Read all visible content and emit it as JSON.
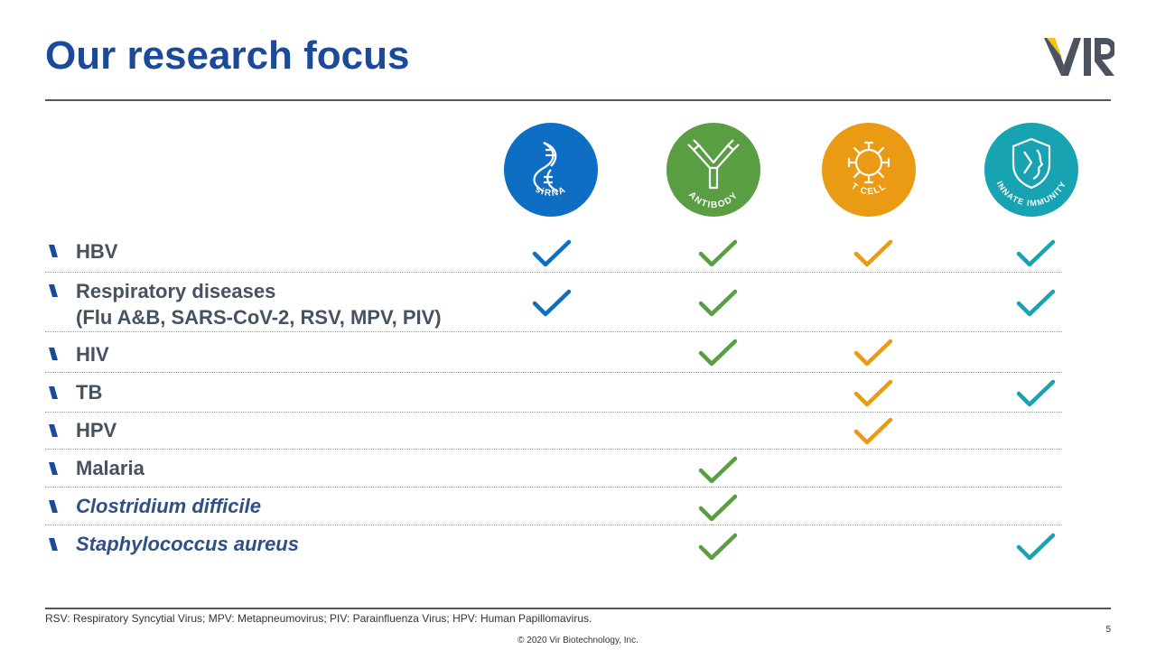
{
  "header": {
    "title": "Our research focus",
    "logo_text": "VIR"
  },
  "modalities": [
    {
      "id": "sirna",
      "label": "siRNA",
      "icon": "dna-helix-icon",
      "color": "#0e6ec4"
    },
    {
      "id": "antibody",
      "label": "ANTIBODY",
      "icon": "antibody-icon",
      "color": "#5a9e44"
    },
    {
      "id": "tcell",
      "label": "T CELL",
      "icon": "t-cell-icon",
      "color": "#eb9b13"
    },
    {
      "id": "innate",
      "label": "INNATE IMMUNITY",
      "icon": "shield-face-icon",
      "color": "#18a3b2"
    }
  ],
  "rows": [
    {
      "label": "HBV",
      "italic": false,
      "checks": [
        true,
        true,
        true,
        true
      ]
    },
    {
      "label": "Respiratory diseases",
      "label2": "(Flu A&B, SARS-CoV-2, RSV, MPV, PIV)",
      "italic": false,
      "checks": [
        true,
        true,
        false,
        true
      ]
    },
    {
      "label": "HIV",
      "italic": false,
      "checks": [
        false,
        true,
        true,
        false
      ]
    },
    {
      "label": "TB",
      "italic": false,
      "checks": [
        false,
        false,
        true,
        true
      ]
    },
    {
      "label": "HPV",
      "italic": false,
      "checks": [
        false,
        false,
        true,
        false
      ]
    },
    {
      "label": "Malaria",
      "italic": false,
      "checks": [
        false,
        true,
        false,
        false
      ]
    },
    {
      "label": "Clostridium difficile",
      "italic": true,
      "checks": [
        false,
        true,
        false,
        false
      ]
    },
    {
      "label": "Staphylococcus aureus",
      "italic": true,
      "checks": [
        false,
        true,
        false,
        true
      ]
    }
  ],
  "footer": {
    "footnote": "RSV: Respiratory Syncytial Virus; MPV: Metapneumovirus; PIV: Parainfluenza Virus; HPV: Human Papillomavirus.",
    "page_number": "5",
    "copyright": "© 2020 Vir Biotechnology, Inc."
  }
}
